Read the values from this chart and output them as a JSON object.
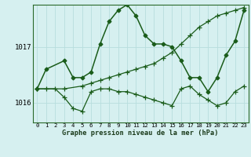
{
  "title": "Graphe pression niveau de la mer (hPa)",
  "background_color": "#d6f0f0",
  "grid_color": "#b8dede",
  "line_color": "#1a5c1a",
  "xlim": [
    -0.5,
    23.5
  ],
  "ylim": [
    1015.65,
    1017.75
  ],
  "yticks": [
    1016,
    1017
  ],
  "xtick_labels": [
    "0",
    "1",
    "2",
    "3",
    "4",
    "5",
    "6",
    "7",
    "8",
    "9",
    "10",
    "11",
    "12",
    "13",
    "14",
    "15",
    "16",
    "17",
    "18",
    "19",
    "20",
    "21",
    "22",
    "23"
  ],
  "series": [
    {
      "x": [
        0,
        1,
        3,
        4,
        5,
        6,
        7,
        8,
        9,
        10,
        11,
        12,
        13,
        14,
        15,
        16,
        17,
        18,
        19,
        20,
        21,
        22,
        23
      ],
      "y": [
        1016.25,
        1016.6,
        1016.75,
        1016.45,
        1016.45,
        1016.55,
        1017.05,
        1017.45,
        1017.65,
        1017.75,
        1017.55,
        1017.2,
        1017.05,
        1017.05,
        1017.0,
        1016.75,
        1016.45,
        1016.45,
        1016.2,
        1016.45,
        1016.85,
        1017.1,
        1017.65
      ],
      "marker": "D",
      "markersize": 2.5,
      "linewidth": 1.1
    },
    {
      "x": [
        0,
        1,
        2,
        3,
        4,
        5,
        6,
        7,
        8,
        9,
        10,
        11,
        12,
        13,
        14,
        15,
        16,
        17,
        18,
        19,
        20,
        21,
        22,
        23
      ],
      "y": [
        1016.25,
        1016.25,
        1016.25,
        1016.1,
        1015.9,
        1015.85,
        1016.2,
        1016.25,
        1016.25,
        1016.2,
        1016.2,
        1016.15,
        1016.1,
        1016.05,
        1016.0,
        1015.95,
        1016.25,
        1016.3,
        1016.15,
        1016.05,
        1015.95,
        1016.0,
        1016.2,
        1016.3
      ],
      "marker": "+",
      "markersize": 4.0,
      "linewidth": 0.9
    },
    {
      "x": [
        0,
        3,
        5,
        6,
        7,
        8,
        9,
        10,
        11,
        12,
        13,
        14,
        15,
        16,
        17,
        18,
        19,
        20,
        21,
        22,
        23
      ],
      "y": [
        1016.25,
        1016.25,
        1016.3,
        1016.35,
        1016.4,
        1016.45,
        1016.5,
        1016.55,
        1016.6,
        1016.65,
        1016.7,
        1016.8,
        1016.9,
        1017.05,
        1017.2,
        1017.35,
        1017.45,
        1017.55,
        1017.6,
        1017.65,
        1017.7
      ],
      "marker": "+",
      "markersize": 4.0,
      "linewidth": 0.9
    }
  ]
}
